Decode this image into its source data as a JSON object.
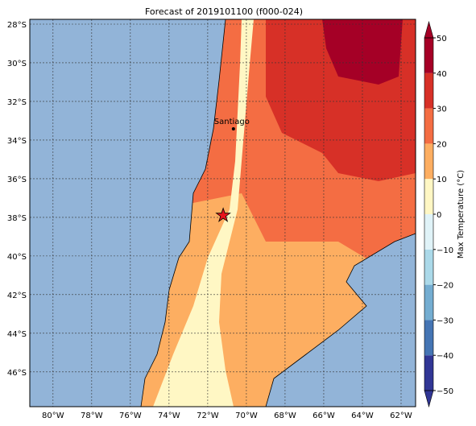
{
  "chart_data": {
    "type": "map",
    "title": "Forecast of 2019101100 (f000-024)",
    "xlim": [
      -81.2,
      -61.25
    ],
    "ylim": [
      -47.8,
      -27.75
    ],
    "xticks": [
      {
        "value": -80,
        "label": "80°W"
      },
      {
        "value": -78,
        "label": "78°W"
      },
      {
        "value": -76,
        "label": "76°W"
      },
      {
        "value": -74,
        "label": "74°W"
      },
      {
        "value": -72,
        "label": "72°W"
      },
      {
        "value": -70,
        "label": "70°W"
      },
      {
        "value": -68,
        "label": "68°W"
      },
      {
        "value": -66,
        "label": "66°W"
      },
      {
        "value": -64,
        "label": "64°W"
      },
      {
        "value": -62,
        "label": "62°W"
      }
    ],
    "yticks": [
      {
        "value": -28,
        "label": "28°S"
      },
      {
        "value": -30,
        "label": "30°S"
      },
      {
        "value": -32,
        "label": "32°S"
      },
      {
        "value": -34,
        "label": "34°S"
      },
      {
        "value": -36,
        "label": "36°S"
      },
      {
        "value": -38,
        "label": "38°S"
      },
      {
        "value": -40,
        "label": "40°S"
      },
      {
        "value": -42,
        "label": "42°S"
      },
      {
        "value": -44,
        "label": "44°S"
      },
      {
        "value": -46,
        "label": "46°S"
      }
    ],
    "grid": true,
    "city": {
      "name": "Santiago",
      "lon": -70.67,
      "lat": -33.42
    },
    "star": {
      "lon": -71.2,
      "lat": -37.9
    },
    "colorbar": {
      "label": "Max Temperature (°C)",
      "lim": [
        -50,
        50
      ],
      "ticks": [
        {
          "value": -50,
          "label": "−50"
        },
        {
          "value": -40,
          "label": "−40"
        },
        {
          "value": -30,
          "label": "−30"
        },
        {
          "value": -20,
          "label": "−20"
        },
        {
          "value": -10,
          "label": "−10"
        },
        0,
        10,
        20,
        30,
        40,
        50
      ],
      "colors": [
        "#313695",
        "#4575b4",
        "#74add1",
        "#abd9e9",
        "#e0f3f8",
        "#fff7c4",
        "#fdae61",
        "#f46d43",
        "#d73027",
        "#a50026"
      ]
    }
  }
}
